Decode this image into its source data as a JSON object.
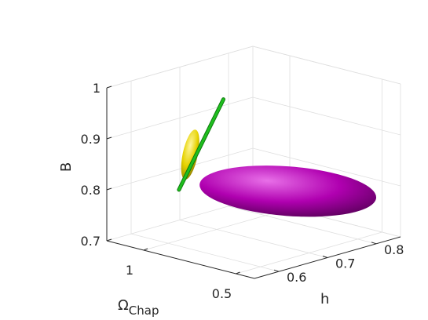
{
  "chart_data": {
    "type": "scatter",
    "title": "",
    "projection": "3d",
    "axes": {
      "x": {
        "label_main": "Ω",
        "label_sub": "Chap",
        "range": [
          0.4,
          1.2
        ],
        "ticks": [
          "1",
          "0.5"
        ]
      },
      "y": {
        "label": "h",
        "range": [
          0.55,
          0.85
        ],
        "ticks": [
          "0.6",
          "0.7",
          "0.8"
        ]
      },
      "z": {
        "label": "B",
        "range": [
          0.7,
          1.0
        ],
        "ticks": [
          "0.7",
          "0.8",
          "0.9",
          "1"
        ]
      }
    },
    "grid": true,
    "legend": "none",
    "series": [
      {
        "kind": "ellipsoid",
        "color": "#b000b0",
        "center": {
          "omega": 0.72,
          "h": 0.74,
          "B": 0.79
        },
        "semi_axes": {
          "omega": 0.32,
          "h": 0.06,
          "B": 0.015
        }
      },
      {
        "kind": "ellipsoid",
        "color": "#e6d200",
        "center": {
          "omega": 0.88,
          "h": 0.6,
          "B": 0.885
        },
        "semi_axes": {
          "omega": 0.025,
          "h": 0.006,
          "B": 0.05
        }
      },
      {
        "kind": "degenerate-strip",
        "color": "#1fbf1f",
        "from": {
          "omega": 1.02,
          "h": 0.63,
          "B": 0.795
        },
        "to": {
          "omega": 0.7,
          "h": 0.6,
          "B": 1.01
        }
      }
    ]
  }
}
